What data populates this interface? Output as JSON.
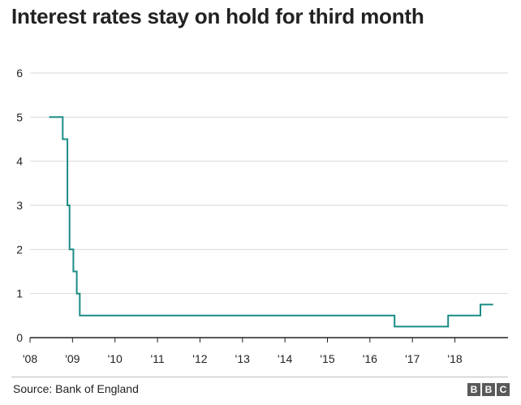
{
  "title": "Interest rates stay on hold for third month",
  "source": "Source: Bank of England",
  "logo": {
    "letters": [
      "B",
      "B",
      "C"
    ]
  },
  "colors": {
    "line": "#1b8c86",
    "grid": "#d9d9d9",
    "axis": "#222222",
    "text": "#222222"
  },
  "chart_data": {
    "type": "line",
    "title": "Interest rates stay on hold for third month",
    "xlabel": "",
    "ylabel": "",
    "xlim": [
      2008.0,
      2019.25
    ],
    "ylim": [
      0,
      6
    ],
    "x_ticks": [
      2008,
      2009,
      2010,
      2011,
      2012,
      2013,
      2014,
      2015,
      2016,
      2017,
      2018
    ],
    "x_tick_labels": [
      "'08",
      "'09",
      "'10",
      "'11",
      "'12",
      "'13",
      "'14",
      "'15",
      "'16",
      "'17",
      "'18"
    ],
    "y_ticks": [
      0,
      1,
      2,
      3,
      4,
      5,
      6
    ],
    "y_tick_labels": [
      "0",
      "1",
      "2",
      "3",
      "4",
      "5",
      "6"
    ],
    "grid": "horizontal",
    "step": "after",
    "series": [
      {
        "points": [
          {
            "x": 2008.45,
            "y": 5.0
          },
          {
            "x": 2008.77,
            "y": 4.5
          },
          {
            "x": 2008.88,
            "y": 3.0
          },
          {
            "x": 2008.93,
            "y": 2.0
          },
          {
            "x": 2009.02,
            "y": 1.5
          },
          {
            "x": 2009.1,
            "y": 1.0
          },
          {
            "x": 2009.17,
            "y": 0.5
          },
          {
            "x": 2016.58,
            "y": 0.25
          },
          {
            "x": 2017.84,
            "y": 0.5
          },
          {
            "x": 2018.6,
            "y": 0.75
          },
          {
            "x": 2018.9,
            "y": 0.75
          }
        ]
      }
    ]
  }
}
